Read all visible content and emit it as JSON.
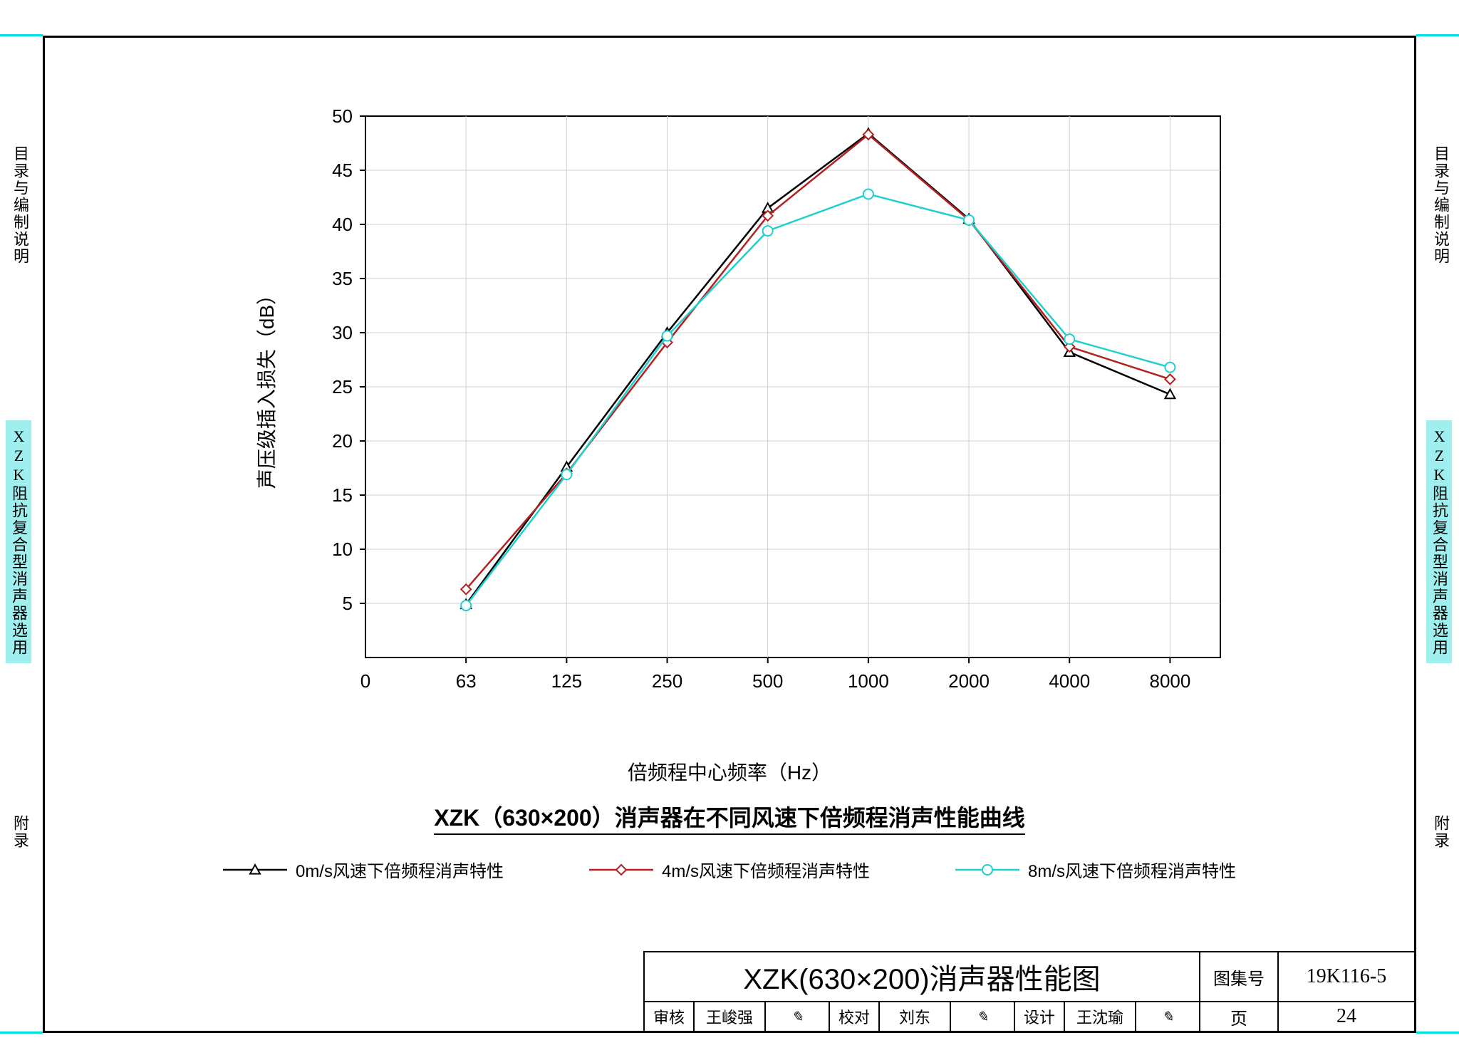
{
  "side_tabs": {
    "left_top": "目录与编制说明",
    "left_mid": "XZK阻抗复合型消声器选用",
    "left_bot": "附录",
    "right_top": "目录与编制说明",
    "right_mid": "XZK阻抗复合型消声器选用",
    "right_bot": "附录"
  },
  "chart": {
    "type": "line",
    "title": "XZK（630×200）消声器在不同风速下倍频程消声性能曲线",
    "xlabel": "倍频程中心频率（Hz）",
    "ylabel": "声压级插入损失（dB）",
    "x_categories": [
      "63",
      "125",
      "250",
      "500",
      "1000",
      "2000",
      "4000",
      "8000"
    ],
    "x_start_label": "0",
    "ylim": [
      0,
      50
    ],
    "ytick_step": 5,
    "grid_color": "#cfcfcf",
    "axis_color": "#000000",
    "background_color": "#ffffff",
    "tick_fontsize": 26,
    "label_fontsize": 28,
    "title_fontsize": 32,
    "line_width": 2.5,
    "marker_size": 7,
    "series": [
      {
        "name": "0m/s风速下倍频程消声特性",
        "color": "#000000",
        "marker": "triangle",
        "values": [
          4.9,
          17.6,
          30.0,
          41.5,
          48.4,
          40.5,
          28.2,
          24.3
        ]
      },
      {
        "name": "4m/s风速下倍频程消声特性",
        "color": "#b22222",
        "marker": "diamond",
        "values": [
          6.3,
          17.0,
          29.1,
          40.8,
          48.3,
          40.4,
          28.7,
          25.7
        ]
      },
      {
        "name": "8m/s风速下倍频程消声特性",
        "color": "#20d0d0",
        "marker": "circle",
        "values": [
          4.8,
          16.9,
          29.7,
          39.4,
          42.8,
          40.4,
          29.4,
          26.8
        ]
      }
    ]
  },
  "title_block": {
    "main": "XZK(630×200)消声器性能图",
    "set_label": "图集号",
    "set_no": "19K116-5",
    "page_label": "页",
    "page_no": "24",
    "审核_label": "审核",
    "审核_name": "王峻强",
    "校对_label": "校对",
    "校对_name": "刘东",
    "设计_label": "设计",
    "设计_name": "王沈瑜"
  }
}
